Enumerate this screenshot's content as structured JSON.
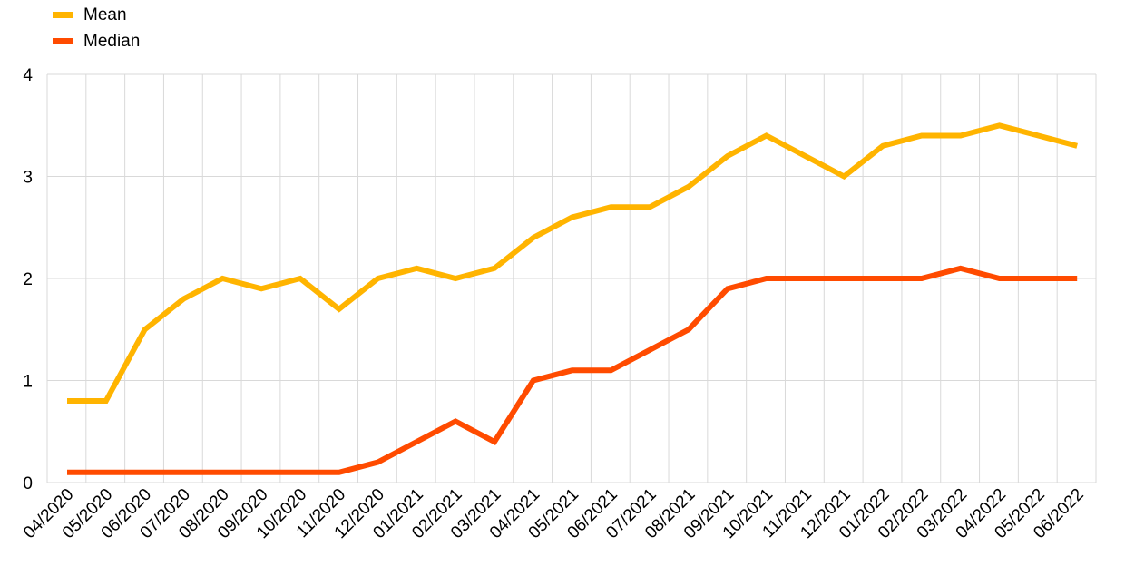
{
  "chart_data": {
    "type": "line",
    "categories": [
      "04/2020",
      "05/2020",
      "06/2020",
      "07/2020",
      "08/2020",
      "09/2020",
      "10/2020",
      "11/2020",
      "12/2020",
      "01/2021",
      "02/2021",
      "03/2021",
      "04/2021",
      "05/2021",
      "06/2021",
      "07/2021",
      "08/2021",
      "09/2021",
      "10/2021",
      "11/2021",
      "12/2021",
      "01/2022",
      "02/2022",
      "03/2022",
      "04/2022",
      "05/2022",
      "06/2022"
    ],
    "series": [
      {
        "name": "Mean",
        "color": "#FFB400",
        "values": [
          0.8,
          0.8,
          1.5,
          1.8,
          2.0,
          1.9,
          2.0,
          1.7,
          2.0,
          2.1,
          2.0,
          2.1,
          2.4,
          2.6,
          2.7,
          2.7,
          2.9,
          3.2,
          3.4,
          3.2,
          3.0,
          3.3,
          3.4,
          3.4,
          3.5,
          3.4,
          3.3
        ]
      },
      {
        "name": "Median",
        "color": "#FF4B00",
        "values": [
          0.1,
          0.1,
          0.1,
          0.1,
          0.1,
          0.1,
          0.1,
          0.1,
          0.2,
          0.4,
          0.6,
          0.4,
          1.0,
          1.1,
          1.1,
          1.3,
          1.5,
          1.9,
          2.0,
          2.0,
          2.0,
          2.0,
          2.0,
          2.1,
          2.0,
          2.0,
          2.0
        ]
      }
    ],
    "y_ticks": [
      "0",
      "1",
      "2",
      "3",
      "4"
    ],
    "ylim": [
      0,
      4
    ],
    "grid": true,
    "legend_position": "top-left"
  }
}
